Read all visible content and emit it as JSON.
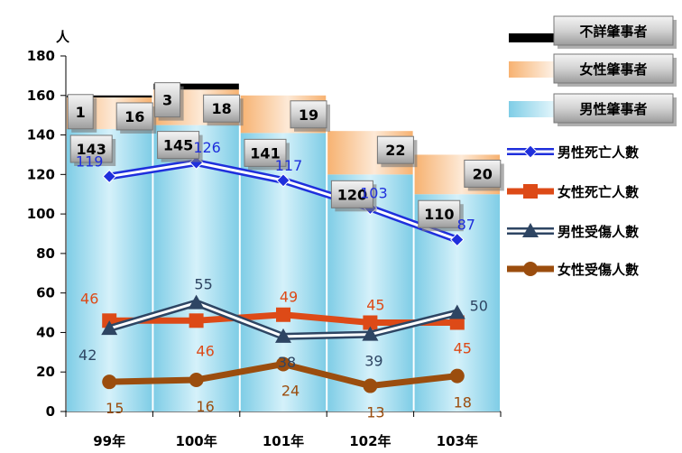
{
  "chart_data": {
    "type": "bar",
    "stacked": true,
    "ylabel": "人",
    "ylim": [
      0,
      180
    ],
    "yticks": [
      0,
      20,
      40,
      60,
      80,
      100,
      120,
      140,
      160,
      180
    ],
    "categories": [
      "99年",
      "100年",
      "101年",
      "102年",
      "103年"
    ],
    "series": [
      {
        "name": "男性肇事者",
        "kind": "bar",
        "values": [
          143,
          145,
          141,
          120,
          110
        ],
        "color": "#9ad8ec"
      },
      {
        "name": "女性肇事者",
        "kind": "bar",
        "values": [
          16,
          18,
          19,
          22,
          20
        ],
        "color": "#fbc698"
      },
      {
        "name": "不詳肇事者",
        "kind": "bar",
        "values": [
          1,
          3,
          0,
          0,
          0
        ],
        "color": "#000000"
      },
      {
        "name": "男性死亡人數",
        "kind": "line",
        "values": [
          119,
          126,
          117,
          103,
          87
        ],
        "color": "#1f2fdc",
        "marker": "diamond"
      },
      {
        "name": "女性死亡人數",
        "kind": "line",
        "values": [
          46,
          46,
          49,
          45,
          45
        ],
        "color": "#dd4a17",
        "marker": "square"
      },
      {
        "name": "男性受傷人數",
        "kind": "line",
        "values": [
          42,
          55,
          38,
          39,
          50
        ],
        "color": "#2e4563",
        "marker": "triangle"
      },
      {
        "name": "女性受傷人數",
        "kind": "line",
        "values": [
          15,
          16,
          24,
          13,
          18
        ],
        "color": "#9b4d0e",
        "marker": "circle"
      }
    ],
    "legend": "right",
    "grid": false
  }
}
